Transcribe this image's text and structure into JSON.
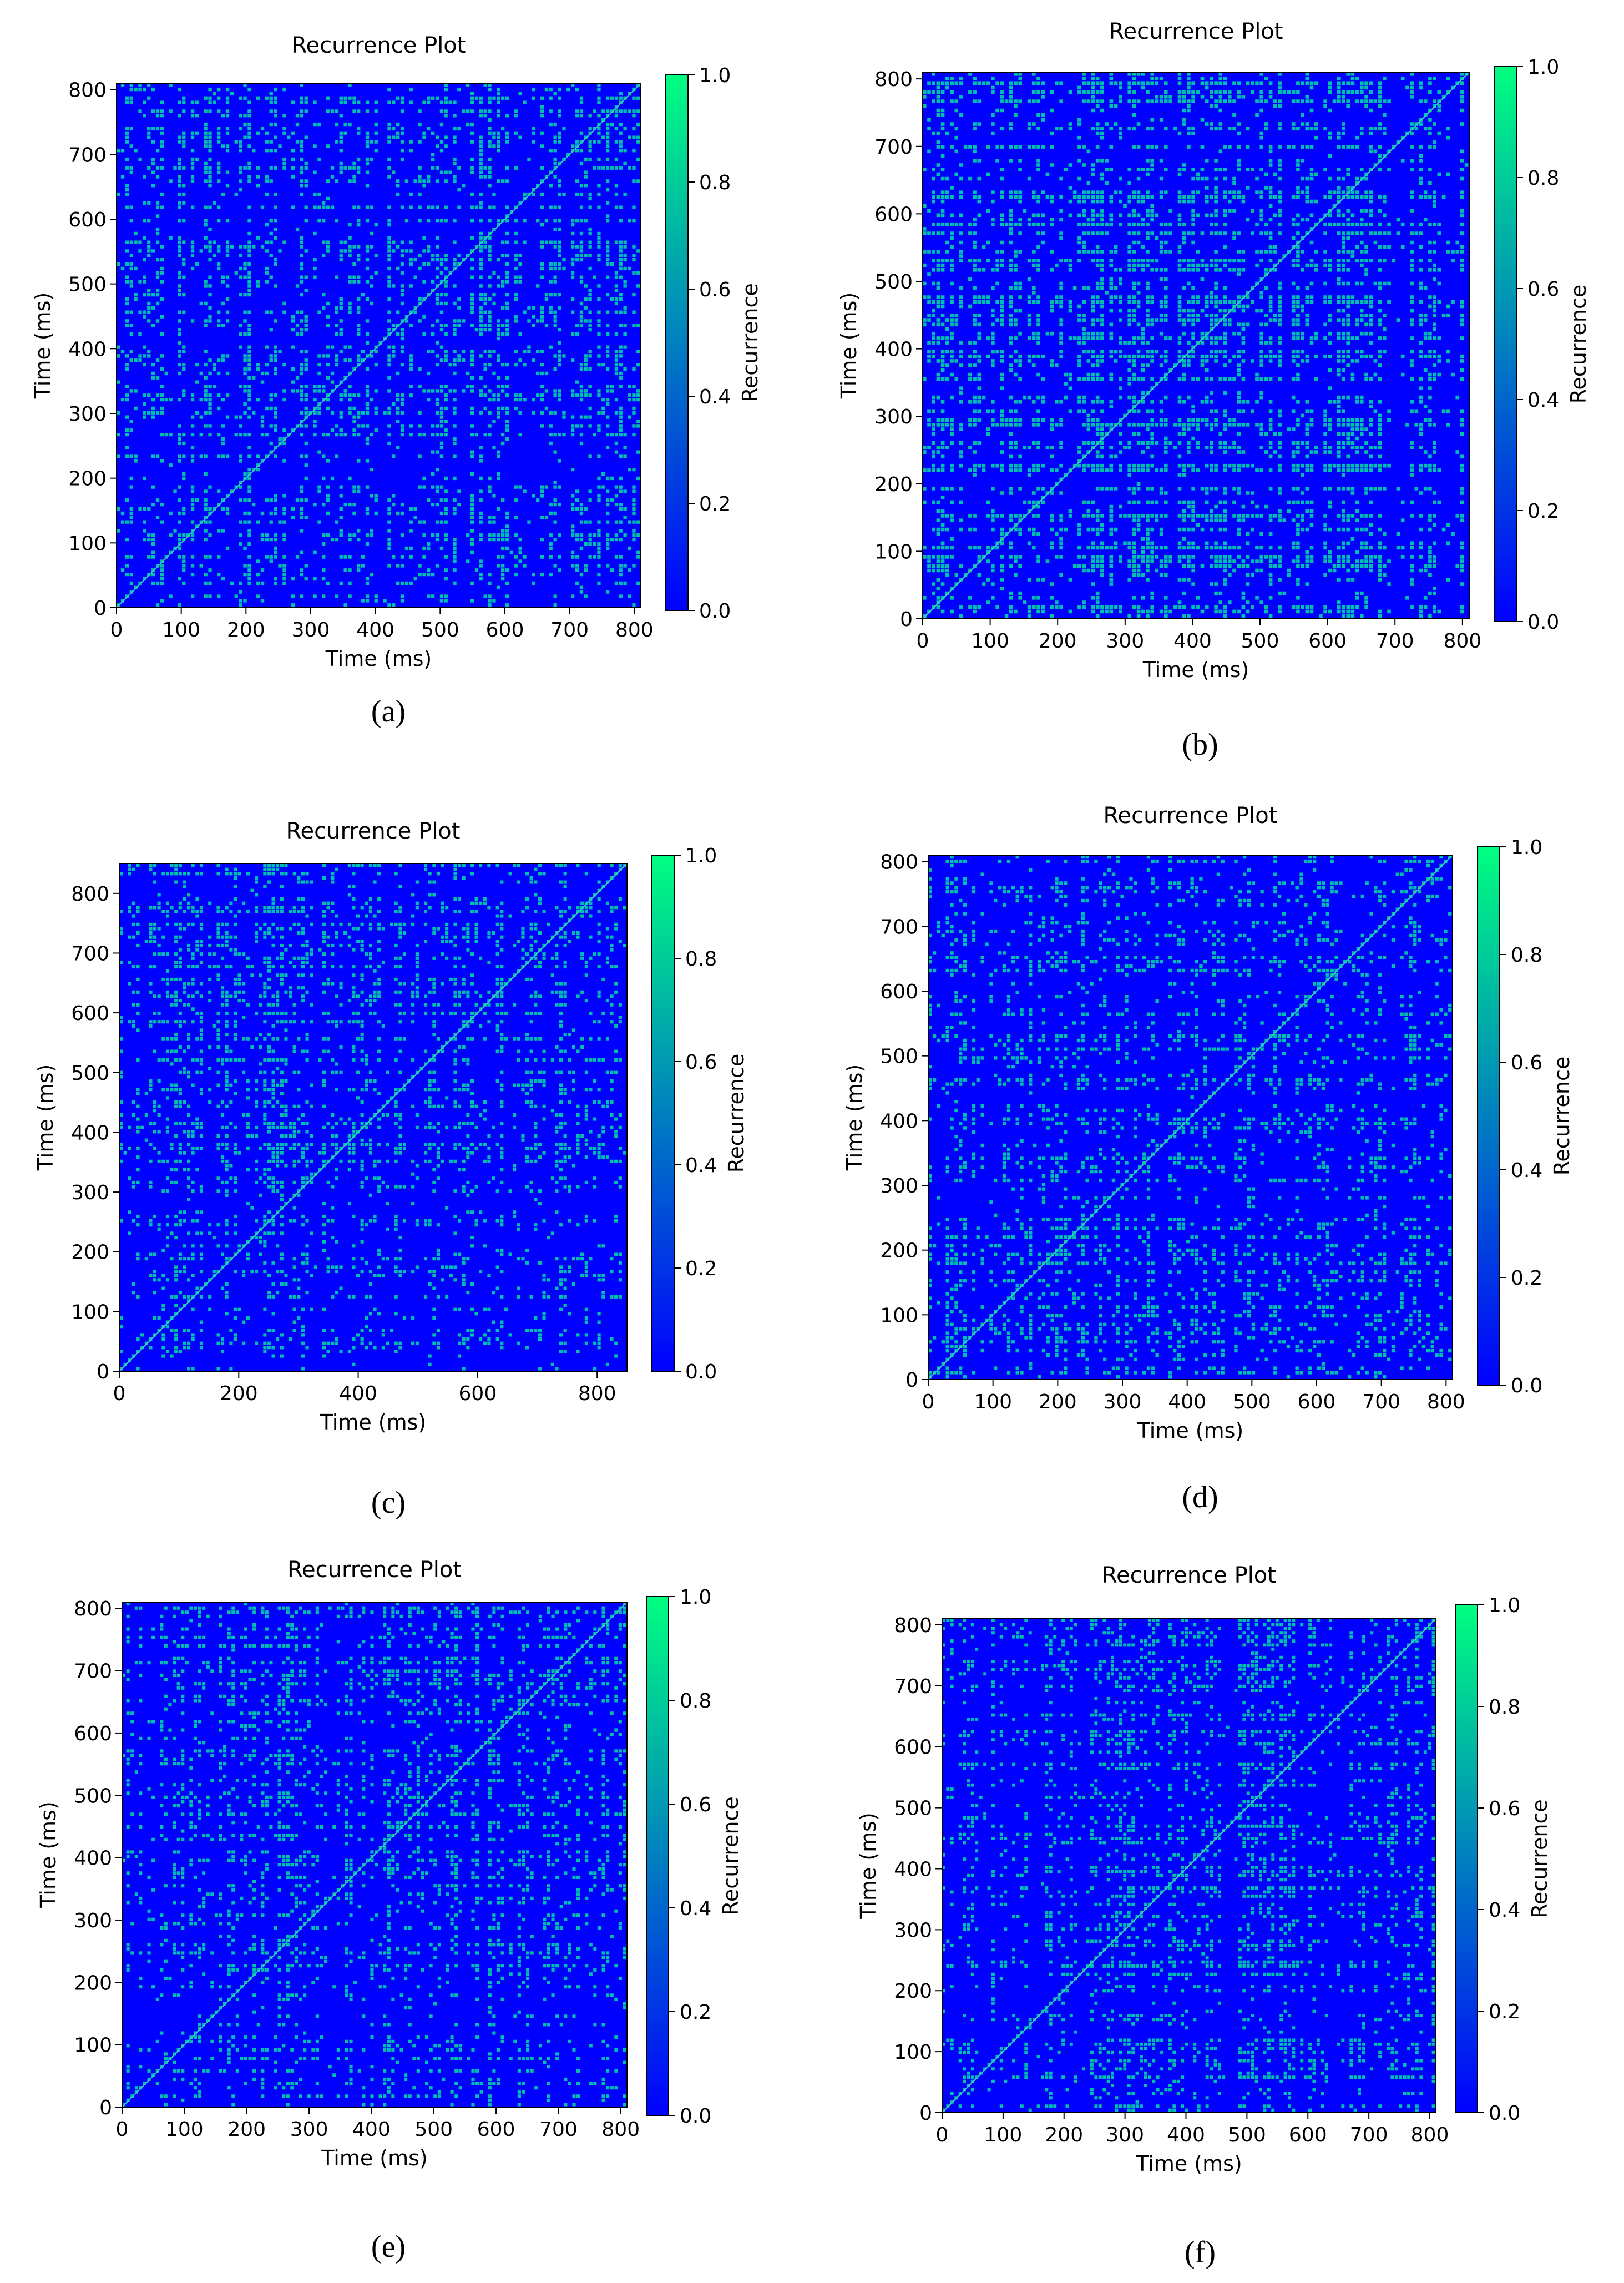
{
  "figure": {
    "panels": [
      {
        "label": "a",
        "label_text": "(a)"
      },
      {
        "label": "b",
        "label_text": "(b)"
      },
      {
        "label": "c",
        "label_text": "(c)"
      },
      {
        "label": "d",
        "label_text": "(d)"
      },
      {
        "label": "e",
        "label_text": "(e)"
      },
      {
        "label": "f",
        "label_text": "(f)"
      }
    ]
  },
  "chart_data": [
    {
      "panel": "a",
      "type": "heatmap",
      "title": "Recurrence Plot",
      "xlabel": "Time (ms)",
      "ylabel": "Time (ms)",
      "xlim": [
        0,
        810
      ],
      "ylim": [
        0,
        810
      ],
      "xticks": [
        0,
        100,
        200,
        300,
        400,
        500,
        600,
        700,
        800
      ],
      "yticks": [
        0,
        100,
        200,
        300,
        400,
        500,
        600,
        700,
        800
      ],
      "colorbar": {
        "label": "Recurrence",
        "ticks": [
          0.0,
          0.2,
          0.4,
          0.6,
          0.8,
          1.0
        ],
        "tick_labels": [
          "0.0",
          "0.2",
          "0.4",
          "0.6",
          "0.8",
          "1.0"
        ],
        "cmap": [
          "#0000ff",
          "#00ff80"
        ]
      },
      "grid": false,
      "pattern": {
        "density": 0.22,
        "seed": 11
      }
    },
    {
      "panel": "b",
      "type": "heatmap",
      "title": "Recurrence Plot",
      "xlabel": "Time (ms)",
      "ylabel": "Time (ms)",
      "xlim": [
        0,
        810
      ],
      "ylim": [
        0,
        810
      ],
      "xticks": [
        0,
        100,
        200,
        300,
        400,
        500,
        600,
        700,
        800
      ],
      "yticks": [
        0,
        100,
        200,
        300,
        400,
        500,
        600,
        700,
        800
      ],
      "colorbar": {
        "label": "Recurrence",
        "ticks": [
          0.0,
          0.2,
          0.4,
          0.6,
          0.8,
          1.0
        ],
        "tick_labels": [
          "0.0",
          "0.2",
          "0.4",
          "0.6",
          "0.8",
          "1.0"
        ],
        "cmap": [
          "#0000ff",
          "#00ff80"
        ]
      },
      "grid": false,
      "pattern": {
        "density": 0.3,
        "seed": 23
      }
    },
    {
      "panel": "c",
      "type": "heatmap",
      "title": "Recurrence Plot",
      "xlabel": "Time (ms)",
      "ylabel": "Time (ms)",
      "xlim": [
        0,
        850
      ],
      "ylim": [
        0,
        850
      ],
      "xticks": [
        0,
        200,
        400,
        600,
        800
      ],
      "yticks": [
        0,
        100,
        200,
        300,
        400,
        500,
        600,
        700,
        800
      ],
      "colorbar": {
        "label": "Recurrence",
        "ticks": [
          0.0,
          0.2,
          0.4,
          0.6,
          0.8,
          1.0
        ],
        "tick_labels": [
          "0.0",
          "0.2",
          "0.4",
          "0.6",
          "0.8",
          "1.0"
        ],
        "cmap": [
          "#0000ff",
          "#00ff80"
        ]
      },
      "grid": false,
      "pattern": {
        "density": 0.18,
        "seed": 37
      }
    },
    {
      "panel": "d",
      "type": "heatmap",
      "title": "Recurrence Plot",
      "xlabel": "Time (ms)",
      "ylabel": "Time (ms)",
      "xlim": [
        0,
        810
      ],
      "ylim": [
        0,
        810
      ],
      "xticks": [
        0,
        100,
        200,
        300,
        400,
        500,
        600,
        700,
        800
      ],
      "yticks": [
        0,
        100,
        200,
        300,
        400,
        500,
        600,
        700,
        800
      ],
      "colorbar": {
        "label": "Recurrence",
        "ticks": [
          0.0,
          0.2,
          0.4,
          0.6,
          0.8,
          1.0
        ],
        "tick_labels": [
          "0.0",
          "0.2",
          "0.4",
          "0.6",
          "0.8",
          "1.0"
        ],
        "cmap": [
          "#0000ff",
          "#00ff80"
        ]
      },
      "grid": false,
      "pattern": {
        "density": 0.18,
        "seed": 41
      }
    },
    {
      "panel": "e",
      "type": "heatmap",
      "title": "Recurrence Plot",
      "xlabel": "Time (ms)",
      "ylabel": "Time (ms)",
      "xlim": [
        0,
        810
      ],
      "ylim": [
        0,
        810
      ],
      "xticks": [
        0,
        100,
        200,
        300,
        400,
        500,
        600,
        700,
        800
      ],
      "yticks": [
        0,
        100,
        200,
        300,
        400,
        500,
        600,
        700,
        800
      ],
      "colorbar": {
        "label": "Recurrence",
        "ticks": [
          0.0,
          0.2,
          0.4,
          0.6,
          0.8,
          1.0
        ],
        "tick_labels": [
          "0.0",
          "0.2",
          "0.4",
          "0.6",
          "0.8",
          "1.0"
        ],
        "cmap": [
          "#0000ff",
          "#00ff80"
        ]
      },
      "grid": false,
      "pattern": {
        "density": 0.18,
        "seed": 53
      }
    },
    {
      "panel": "f",
      "type": "heatmap",
      "title": "Recurrence Plot",
      "xlabel": "Time (ms)",
      "ylabel": "Time (ms)",
      "xlim": [
        0,
        810
      ],
      "ylim": [
        0,
        810
      ],
      "xticks": [
        0,
        100,
        200,
        300,
        400,
        500,
        600,
        700,
        800
      ],
      "yticks": [
        0,
        100,
        200,
        300,
        400,
        500,
        600,
        700,
        800
      ],
      "colorbar": {
        "label": "Recurrence",
        "ticks": [
          0.0,
          0.2,
          0.4,
          0.6,
          0.8,
          1.0
        ],
        "tick_labels": [
          "0.0",
          "0.2",
          "0.4",
          "0.6",
          "0.8",
          "1.0"
        ],
        "cmap": [
          "#0000ff",
          "#00ff80"
        ]
      },
      "grid": false,
      "pattern": {
        "density": 0.18,
        "seed": 67
      }
    }
  ]
}
